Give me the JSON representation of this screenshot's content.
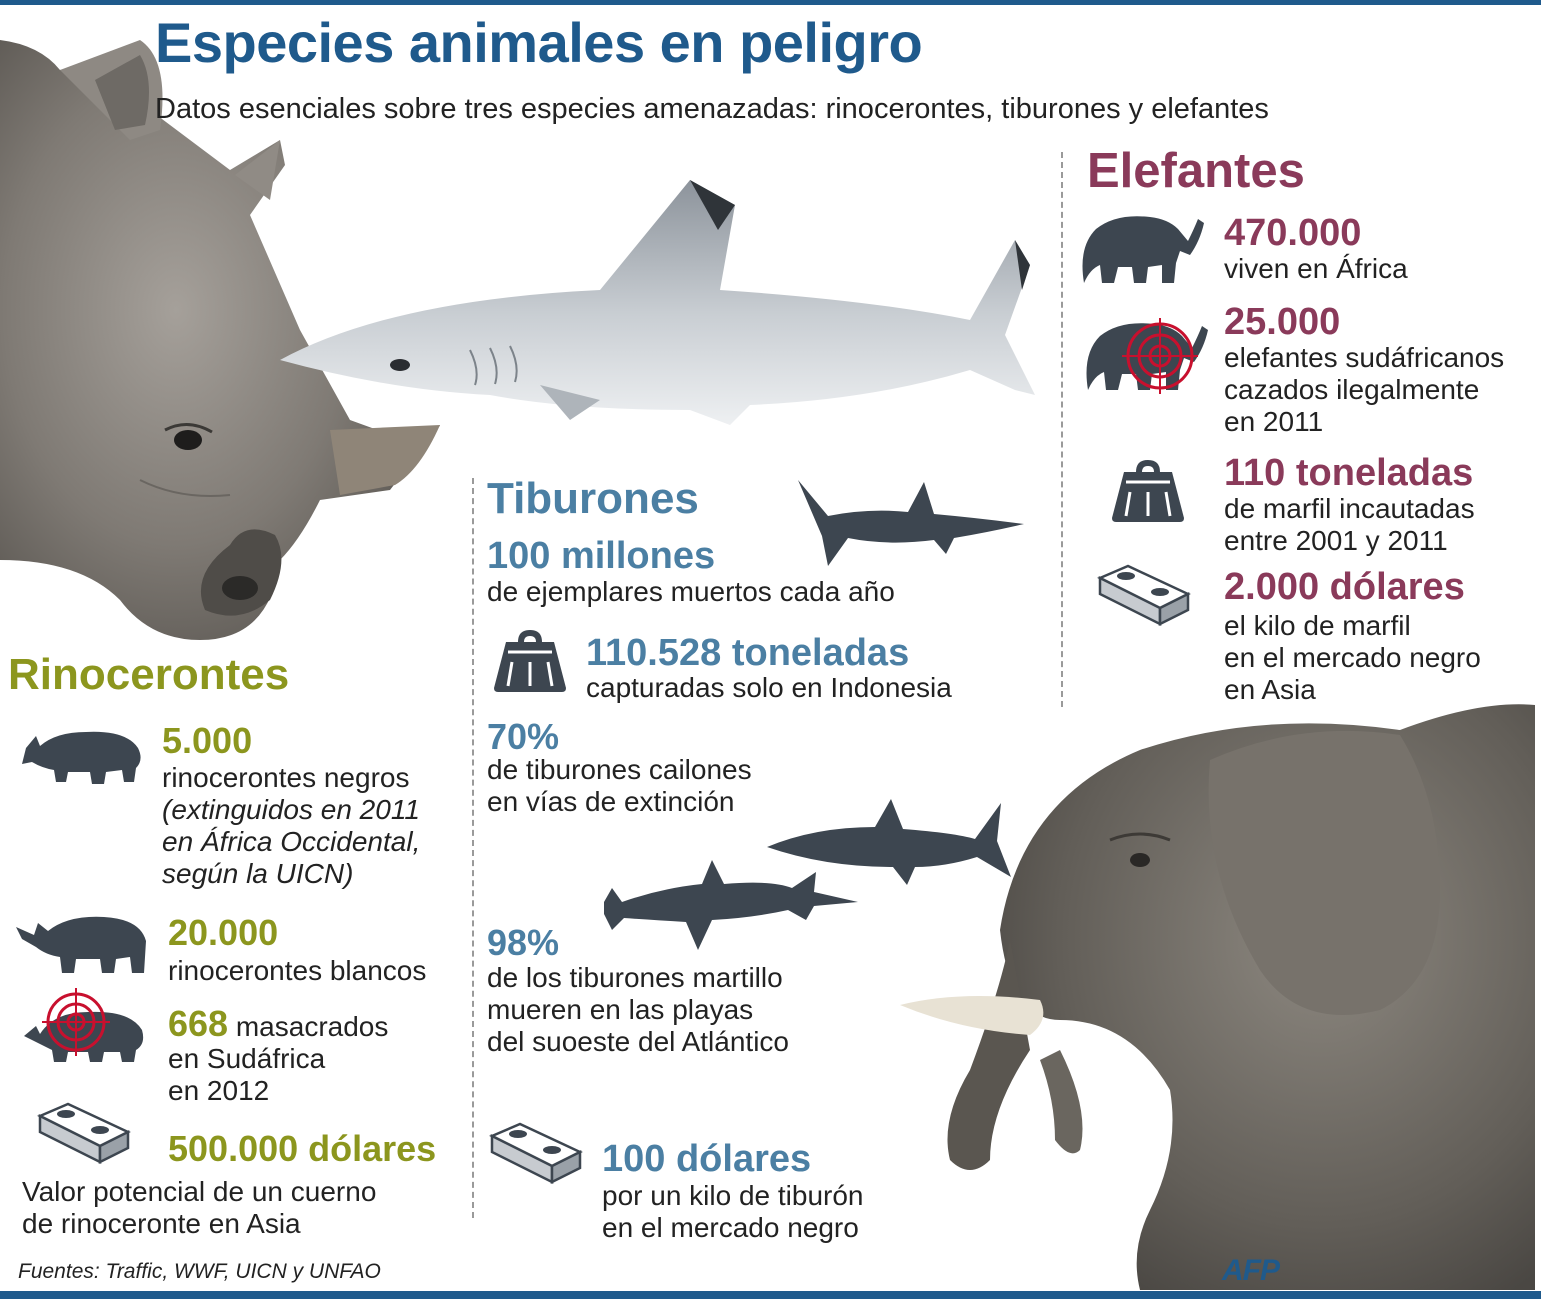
{
  "header": {
    "title": "Especies animales en peligro",
    "subtitle": "Datos esenciales sobre tres especies amenazadas: rinocerontes, tiburones y elefantes"
  },
  "rhinos": {
    "heading": "Rinocerontes",
    "stat1": {
      "figure": "5.000",
      "line1": "rinocerontes negros",
      "note1": "(extinguidos en 2011",
      "note2": "en África Occidental,",
      "note3": "según la UICN)"
    },
    "stat2": {
      "figure": "20.000",
      "line1": "rinocerontes blancos"
    },
    "stat3": {
      "figure": "668",
      "line1": " masacrados",
      "line2": "en Sudáfrica",
      "line3": "en 2012"
    },
    "stat4": {
      "figure": "500.000 dólares",
      "line1": "Valor potencial de un cuerno",
      "line2": "de rinoceronte en Asia"
    }
  },
  "sharks": {
    "heading": "Tiburones",
    "stat1": {
      "figure": "100 millones",
      "line1": "de ejemplares muertos cada año"
    },
    "stat2": {
      "figure": "110.528 toneladas",
      "line1": "capturadas solo en Indonesia"
    },
    "stat3": {
      "figure": "70%",
      "line1": "de tiburones cailones",
      "line2": "en vías de extinción"
    },
    "stat4": {
      "figure": "98%",
      "line1": "de los tiburones martillo",
      "line2": "mueren en las playas",
      "line3": "del suoeste del Atlántico"
    },
    "stat5": {
      "figure": "100 dólares",
      "line1": "por un kilo de tiburón",
      "line2": "en el mercado negro"
    }
  },
  "elephants": {
    "heading": "Elefantes",
    "stat1": {
      "figure": "470.000",
      "line1": "viven en África"
    },
    "stat2": {
      "figure": "25.000",
      "line1": "elefantes sudáfricanos",
      "line2": "cazados ilegalmente",
      "line3": "en 2011"
    },
    "stat3": {
      "figure": "110 toneladas",
      "line1": "de marfil incautadas",
      "line2": "entre 2001 y 2011"
    },
    "stat4": {
      "figure": "2.000 dólares",
      "line1": "el kilo de marfil",
      "line2": "en el mercado negro",
      "line3": "en Asia"
    }
  },
  "footer": {
    "sources": "Fuentes: Traffic, WWF, UICN y UNFAO",
    "agency": "AFP"
  },
  "colors": {
    "title_blue": "#1f5a8c",
    "rhino_olive": "#8c961e",
    "shark_blue": "#4b7fa3",
    "elephant_maroon": "#8a3a5a",
    "silhouette": "#3d4650",
    "target_red": "#c8102e"
  },
  "icons": [
    "rhino-black-icon",
    "rhino-white-icon",
    "rhino-target-icon",
    "money-stack-icon",
    "shark-silhouette-icon",
    "weight-icon",
    "hammerhead-icon",
    "elephant-icon",
    "elephant-target-icon"
  ]
}
